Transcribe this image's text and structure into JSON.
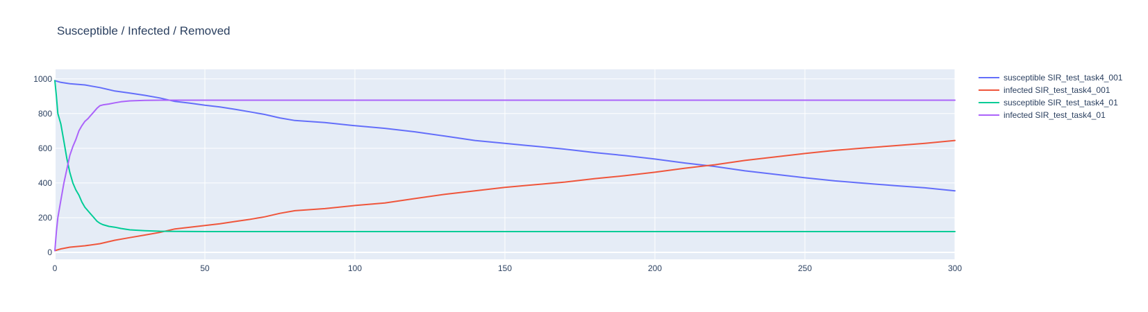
{
  "chart_data": {
    "type": "line",
    "title": "Susceptible / Infected / Removed",
    "xlabel": "",
    "ylabel": "",
    "xlim": [
      0,
      300
    ],
    "ylim": [
      -40,
      1055
    ],
    "x_ticks": [
      0,
      50,
      100,
      150,
      200,
      250,
      300
    ],
    "y_ticks": [
      0,
      200,
      400,
      600,
      800,
      1000
    ],
    "grid": true,
    "legend_position": "right",
    "colors": {
      "plot_bg": "#e5ecf6",
      "grid": "#ffffff",
      "text": "#2a3f5f"
    },
    "series": [
      {
        "name": "susceptible SIR_test_task4_001",
        "color": "#636efa",
        "points": [
          [
            0,
            990
          ],
          [
            2,
            980
          ],
          [
            5,
            972
          ],
          [
            10,
            965
          ],
          [
            15,
            950
          ],
          [
            20,
            930
          ],
          [
            25,
            918
          ],
          [
            30,
            905
          ],
          [
            35,
            890
          ],
          [
            40,
            870
          ],
          [
            45,
            860
          ],
          [
            50,
            848
          ],
          [
            55,
            838
          ],
          [
            60,
            825
          ],
          [
            65,
            810
          ],
          [
            70,
            795
          ],
          [
            75,
            775
          ],
          [
            80,
            760
          ],
          [
            90,
            748
          ],
          [
            100,
            730
          ],
          [
            110,
            715
          ],
          [
            120,
            695
          ],
          [
            130,
            670
          ],
          [
            140,
            645
          ],
          [
            150,
            628
          ],
          [
            160,
            612
          ],
          [
            170,
            595
          ],
          [
            180,
            575
          ],
          [
            190,
            558
          ],
          [
            200,
            538
          ],
          [
            210,
            515
          ],
          [
            220,
            495
          ],
          [
            230,
            470
          ],
          [
            240,
            450
          ],
          [
            250,
            430
          ],
          [
            260,
            412
          ],
          [
            270,
            398
          ],
          [
            280,
            385
          ],
          [
            290,
            372
          ],
          [
            300,
            355
          ]
        ]
      },
      {
        "name": "infected SIR_test_task4_001",
        "color": "#ef553b",
        "points": [
          [
            0,
            10
          ],
          [
            2,
            20
          ],
          [
            5,
            30
          ],
          [
            10,
            38
          ],
          [
            15,
            50
          ],
          [
            20,
            70
          ],
          [
            25,
            85
          ],
          [
            30,
            100
          ],
          [
            35,
            115
          ],
          [
            40,
            135
          ],
          [
            45,
            145
          ],
          [
            50,
            155
          ],
          [
            55,
            165
          ],
          [
            60,
            178
          ],
          [
            65,
            190
          ],
          [
            70,
            205
          ],
          [
            75,
            225
          ],
          [
            80,
            240
          ],
          [
            90,
            252
          ],
          [
            100,
            270
          ],
          [
            110,
            285
          ],
          [
            120,
            310
          ],
          [
            130,
            335
          ],
          [
            140,
            355
          ],
          [
            150,
            375
          ],
          [
            160,
            390
          ],
          [
            170,
            405
          ],
          [
            180,
            425
          ],
          [
            190,
            442
          ],
          [
            200,
            462
          ],
          [
            210,
            485
          ],
          [
            220,
            505
          ],
          [
            230,
            530
          ],
          [
            240,
            550
          ],
          [
            250,
            570
          ],
          [
            260,
            588
          ],
          [
            270,
            602
          ],
          [
            280,
            615
          ],
          [
            290,
            628
          ],
          [
            300,
            645
          ]
        ]
      },
      {
        "name": "susceptible SIR_test_task4_01",
        "color": "#00cc96",
        "points": [
          [
            0,
            990
          ],
          [
            0.5,
            900
          ],
          [
            1,
            800
          ],
          [
            2,
            740
          ],
          [
            3,
            640
          ],
          [
            4,
            540
          ],
          [
            5,
            460
          ],
          [
            6,
            400
          ],
          [
            7,
            360
          ],
          [
            8,
            330
          ],
          [
            9,
            290
          ],
          [
            10,
            260
          ],
          [
            11,
            240
          ],
          [
            12,
            220
          ],
          [
            13,
            200
          ],
          [
            14,
            180
          ],
          [
            15,
            168
          ],
          [
            16,
            160
          ],
          [
            18,
            150
          ],
          [
            20,
            145
          ],
          [
            22,
            138
          ],
          [
            25,
            130
          ],
          [
            30,
            125
          ],
          [
            35,
            122
          ],
          [
            40,
            121
          ],
          [
            50,
            120
          ],
          [
            100,
            120
          ],
          [
            150,
            120
          ],
          [
            200,
            120
          ],
          [
            250,
            120
          ],
          [
            300,
            120
          ]
        ]
      },
      {
        "name": "infected SIR_test_task4_01",
        "color": "#ab63fa",
        "points": [
          [
            0,
            10
          ],
          [
            0.5,
            120
          ],
          [
            1,
            200
          ],
          [
            2,
            300
          ],
          [
            3,
            400
          ],
          [
            4,
            480
          ],
          [
            5,
            560
          ],
          [
            6,
            610
          ],
          [
            7,
            650
          ],
          [
            8,
            700
          ],
          [
            9,
            730
          ],
          [
            10,
            755
          ],
          [
            11,
            770
          ],
          [
            12,
            790
          ],
          [
            13,
            810
          ],
          [
            14,
            830
          ],
          [
            15,
            845
          ],
          [
            16,
            850
          ],
          [
            18,
            855
          ],
          [
            20,
            862
          ],
          [
            22,
            868
          ],
          [
            25,
            873
          ],
          [
            30,
            876
          ],
          [
            35,
            877
          ],
          [
            40,
            877
          ],
          [
            50,
            877
          ],
          [
            100,
            877
          ],
          [
            150,
            877
          ],
          [
            200,
            877
          ],
          [
            250,
            877
          ],
          [
            300,
            877
          ]
        ]
      }
    ]
  }
}
